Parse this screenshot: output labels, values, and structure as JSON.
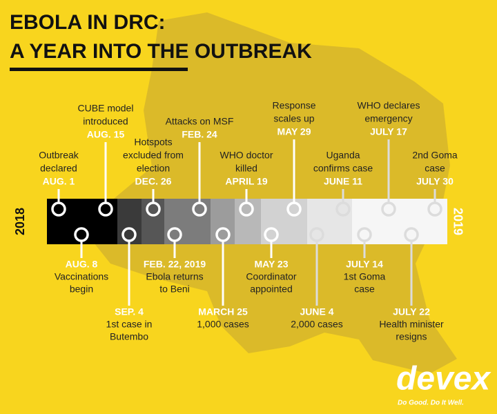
{
  "header": {
    "title_line1": "EBOLA IN DRC:",
    "title_line2": "A YEAR INTO THE OUTBREAK"
  },
  "timeline": {
    "start_year": "2018",
    "end_year": "2019",
    "top_events": [
      {
        "date": "AUG. 1",
        "lines": [
          "Outbreak",
          "declared"
        ]
      },
      {
        "date": "AUG. 15",
        "lines": [
          "CUBE model",
          "introduced"
        ]
      },
      {
        "date": "DEC. 26",
        "lines": [
          "Hotspots",
          "excluded from",
          "election"
        ]
      },
      {
        "date": "FEB. 24",
        "lines": [
          "Attacks on MSF"
        ]
      },
      {
        "date": "APRIL 19",
        "lines": [
          "WHO doctor",
          "killed"
        ]
      },
      {
        "date": "MAY 29",
        "lines": [
          "Response",
          "scales up"
        ]
      },
      {
        "date": "JUNE 11",
        "lines": [
          "Uganda",
          "confirms case"
        ]
      },
      {
        "date": "JULY 17",
        "lines": [
          "WHO declares",
          "emergency"
        ]
      },
      {
        "date": "JULY 30",
        "lines": [
          "2nd Goma",
          "case"
        ]
      }
    ],
    "bottom_events": [
      {
        "date": "AUG. 8",
        "lines": [
          "Vaccinations",
          "begin"
        ]
      },
      {
        "date": "SEP. 4",
        "lines": [
          "1st case in",
          "Butembo"
        ]
      },
      {
        "date": "FEB. 22, 2019",
        "lines": [
          "Ebola returns",
          "to Beni"
        ]
      },
      {
        "date": "MARCH 25",
        "lines": [
          "1,000 cases"
        ]
      },
      {
        "date": "MAY 23",
        "lines": [
          "Coordinator",
          "appointed"
        ]
      },
      {
        "date": "JUNE 4",
        "lines": [
          "2,000 cases"
        ]
      },
      {
        "date": "JULY 14",
        "lines": [
          "1st Goma",
          "case"
        ]
      },
      {
        "date": "JULY 22",
        "lines": [
          "Health minister",
          "resigns"
        ]
      }
    ]
  },
  "logo": {
    "name": "devex",
    "tagline": "Do Good. Do It Well."
  }
}
